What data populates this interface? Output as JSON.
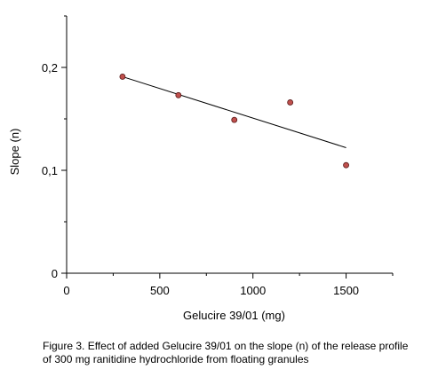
{
  "chart_data": {
    "type": "scatter",
    "xlabel": "Gelucire 39/01 (mg)",
    "ylabel": "Slope (n)",
    "xlim": [
      0,
      1750
    ],
    "ylim": [
      0,
      0.25
    ],
    "x_ticks": [
      0,
      500,
      1000,
      1500
    ],
    "x_tick_labels": [
      "0",
      "500",
      "1000",
      "1500"
    ],
    "y_ticks": [
      0,
      0.1,
      0.2
    ],
    "y_tick_labels": [
      "0",
      "0,1",
      "0,2"
    ],
    "grid": false,
    "points": [
      {
        "x": 300,
        "y": 0.191
      },
      {
        "x": 600,
        "y": 0.173
      },
      {
        "x": 900,
        "y": 0.149
      },
      {
        "x": 1200,
        "y": 0.166
      },
      {
        "x": 1500,
        "y": 0.105
      }
    ],
    "trendline": {
      "x": [
        300,
        1500
      ],
      "y": [
        0.191,
        0.122
      ]
    },
    "marker_color": "#c0504d"
  },
  "caption": "Figure 3. Effect of added Gelucire 39/01 on the slope (n) of the release profile of 300 mg ranitidine hydrochloride from floating granules"
}
